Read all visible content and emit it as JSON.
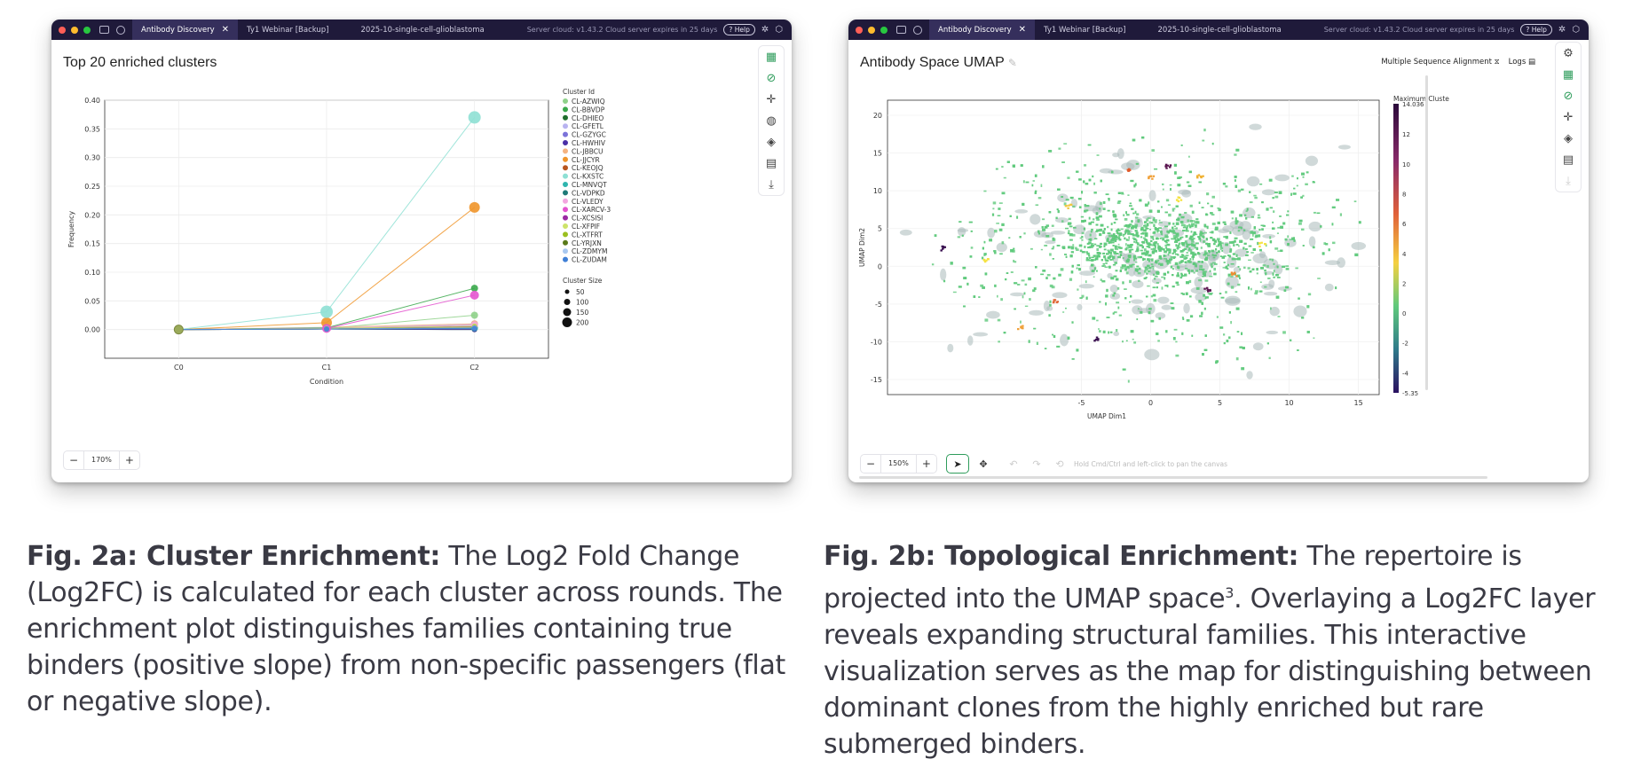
{
  "window_a": {
    "tabs": [
      {
        "label": "Antibody Discovery",
        "active": true
      },
      {
        "label": "Ty1 Webinar [Backup]"
      },
      {
        "label": "2025-10-single-cell-glioblastoma"
      }
    ],
    "server_status": "Server cloud: v1.43.2 Cloud server expires in 25 days",
    "help_label": "Help",
    "zoom": {
      "value": "170%",
      "minus": "−",
      "plus": "+"
    }
  },
  "window_b": {
    "tabs": [
      {
        "label": "Antibody Discovery",
        "active": true
      },
      {
        "label": "Ty1 Webinar [Backup]"
      },
      {
        "label": "2025-10-single-cell-glioblastoma"
      }
    ],
    "server_status": "Server cloud: v1.43.2 Cloud server expires in 25 days",
    "help_label": "Help",
    "msa_label": "Multiple Sequence Alignment",
    "logs_label": "Logs",
    "zoom": {
      "value": "150%",
      "minus": "−",
      "plus": "+"
    },
    "pan_hint": "Hold Cmd/Ctrl and left-click to pan the canvas"
  },
  "chart_data": [
    {
      "type": "line",
      "title": "Top 20 enriched clusters",
      "xlabel": "Condition",
      "ylabel": "Frequency",
      "categories": [
        "C0",
        "C1",
        "C2"
      ],
      "ylim": [
        -0.05,
        0.4
      ],
      "yticks": [
        "0.40",
        "0.35",
        "0.30",
        "0.25",
        "0.20",
        "0.15",
        "0.10",
        "0.05",
        "0.00"
      ],
      "grid": true,
      "legend_title": "Cluster Id",
      "legend_position": "right",
      "size_legend_title": "Cluster Size",
      "size_legend": [
        {
          "label": "50",
          "r": 2.5
        },
        {
          "label": "100",
          "r": 3.5
        },
        {
          "label": "150",
          "r": 4.5
        },
        {
          "label": "200",
          "r": 5.5
        }
      ],
      "series": [
        {
          "name": "CL-AZWIQ",
          "color": "#8fd18a",
          "values": [
            0,
            0.002,
            0.025
          ],
          "size": [
            4,
            4,
            4
          ]
        },
        {
          "name": "CL-BBVDP",
          "color": "#3aa84b",
          "values": [
            0,
            0.003,
            0.072
          ],
          "size": [
            4,
            4,
            4
          ]
        },
        {
          "name": "CL-DHIEO",
          "color": "#1f6e2d",
          "values": [
            0,
            0.001,
            0
          ],
          "size": [
            3,
            3,
            3
          ]
        },
        {
          "name": "CL-GFETL",
          "color": "#b8b3f0",
          "values": [
            0,
            0.002,
            0.01
          ],
          "size": [
            4,
            3,
            4
          ]
        },
        {
          "name": "CL-GZYGC",
          "color": "#7b73d9",
          "values": [
            0,
            0.001,
            0.008
          ],
          "size": [
            3,
            3,
            3
          ]
        },
        {
          "name": "CL-HWHIV",
          "color": "#4a2fa6",
          "values": [
            0,
            0.001,
            0
          ],
          "size": [
            3,
            3,
            3
          ]
        },
        {
          "name": "CL-JBBCU",
          "color": "#f5b380",
          "values": [
            0,
            0.004,
            0.01
          ],
          "size": [
            4,
            4,
            4
          ]
        },
        {
          "name": "CL-JJCYR",
          "color": "#f0952a",
          "values": [
            0,
            0.012,
            0.213
          ],
          "size": [
            6,
            6,
            6
          ]
        },
        {
          "name": "CL-KEOJQ",
          "color": "#b8561f",
          "values": [
            0,
            0.002,
            0.005
          ],
          "size": [
            3,
            3,
            3
          ]
        },
        {
          "name": "CL-KXSTC",
          "color": "#8ee0d4",
          "values": [
            0,
            0.031,
            0.37
          ],
          "size": [
            7,
            7,
            7
          ]
        },
        {
          "name": "CL-MNVQT",
          "color": "#2fb5ae",
          "values": [
            0,
            0.003,
            0.003
          ],
          "size": [
            4,
            4,
            4
          ]
        },
        {
          "name": "CL-VDPKD",
          "color": "#1f7a78",
          "values": [
            0,
            0.001,
            0.002
          ],
          "size": [
            3,
            3,
            3
          ]
        },
        {
          "name": "CL-VLEDY",
          "color": "#f3a6df",
          "values": [
            0,
            0.002,
            0.008
          ],
          "size": [
            4,
            4,
            4
          ]
        },
        {
          "name": "CL-XARCV-3",
          "color": "#e454cf",
          "values": [
            0,
            0.002,
            0.06
          ],
          "size": [
            5,
            5,
            5
          ]
        },
        {
          "name": "CL-XCSISI",
          "color": "#9b2aa3",
          "values": [
            0,
            0.001,
            0.005
          ],
          "size": [
            3,
            3,
            3
          ]
        },
        {
          "name": "CL-XFPIF",
          "color": "#cde36a",
          "values": [
            0,
            0.002,
            0.006
          ],
          "size": [
            3,
            3,
            3
          ]
        },
        {
          "name": "CL-XTFRT",
          "color": "#9bbf1f",
          "values": [
            0,
            0.001,
            0.004
          ],
          "size": [
            3,
            3,
            3
          ]
        },
        {
          "name": "CL-YRJXN",
          "color": "#5a7a1a",
          "values": [
            0,
            0.001,
            0.003
          ],
          "size": [
            3,
            3,
            3
          ]
        },
        {
          "name": "CL-ZDMYM",
          "color": "#a9c8f0",
          "values": [
            0,
            0.001,
            0.003
          ],
          "size": [
            3,
            3,
            3
          ]
        },
        {
          "name": "CL-ZUDAM",
          "color": "#3f7fd6",
          "values": [
            0,
            0.001,
            0.002
          ],
          "size": [
            3,
            3,
            3
          ]
        }
      ],
      "start_marker": {
        "condition": "C0",
        "value": 0,
        "color": "#9aaa5a"
      },
      "zoom": "170%"
    },
    {
      "type": "scatter",
      "title": "Antibody Space UMAP",
      "xlabel": "UMAP Dim1",
      "ylabel": "UMAP Dim2",
      "xlim": [
        -19,
        16.5
      ],
      "ylim": [
        -17,
        22
      ],
      "xticks": [
        -5,
        0,
        5,
        10,
        15
      ],
      "yticks": [
        20,
        15,
        10,
        5,
        0,
        -5,
        -10,
        -15
      ],
      "colorbar_title": "Maximum Cluste",
      "colorbar_range": [
        -5.35,
        14.036
      ],
      "colorbar_ticks": [
        "14.036",
        "12",
        "10",
        "8",
        "6",
        "4",
        "2",
        "0",
        "-2",
        "-4",
        "-5.35"
      ],
      "grid": true,
      "base_color": "#5fc97c",
      "gray_color": "#a9b9b9",
      "hotspots": [
        {
          "x": 0,
          "y": 12,
          "color": "#f0a038"
        },
        {
          "x": -1.5,
          "y": 13,
          "color": "#e05a2a"
        },
        {
          "x": 1.2,
          "y": 13.4,
          "color": "#5a1550"
        },
        {
          "x": 3.5,
          "y": 12,
          "color": "#f0b030"
        },
        {
          "x": 2,
          "y": 9,
          "color": "#f5e240"
        },
        {
          "x": -7,
          "y": -4.5,
          "color": "#e06a3a"
        },
        {
          "x": 4,
          "y": -3,
          "color": "#5a1550"
        },
        {
          "x": -15,
          "y": 2.5,
          "color": "#3a1050"
        },
        {
          "x": -4,
          "y": -9.5,
          "color": "#3a1050"
        },
        {
          "x": -12,
          "y": 1,
          "color": "#f5e240"
        },
        {
          "x": 8,
          "y": 3,
          "color": "#f5e240"
        },
        {
          "x": -6,
          "y": 8,
          "color": "#f0c840"
        },
        {
          "x": 6,
          "y": -1,
          "color": "#f08a30"
        },
        {
          "x": -9.5,
          "y": -8,
          "color": "#f0a038"
        }
      ],
      "zoom": "150%"
    }
  ],
  "captions": {
    "a_title": "Fig. 2a: Cluster Enrichment:",
    "a_text": " The Log2 Fold Change (Log2FC) is calculated for each cluster across rounds. The enrichment plot distinguishes families containing true binders (positive slope) from non-specific passengers (flat or negative slope).",
    "b_title": "Fig. 2b: Topological Enrichment:",
    "b_text1": " The repertoire is projected into the UMAP space",
    "b_sup": "3",
    "b_text2": ". Overlaying a Log2FC layer reveals expanding structural families. This interactive visualization serves as the map for distinguishing between dominant clones from the highly enriched but rare submerged binders."
  },
  "icons": [
    "window-layout-icon",
    "sidebar-icon",
    "close-icon",
    "help-icon",
    "bug-icon",
    "cube-icon",
    "grid-icon",
    "link-icon",
    "crosshair-icon",
    "palette-icon",
    "layers-icon",
    "clipboard-icon",
    "download-icon",
    "settings-icon",
    "hourglass-icon",
    "document-icon",
    "cursor-icon",
    "move-icon",
    "undo-icon",
    "redo-icon",
    "reset-icon",
    "pencil-icon"
  ],
  "colors": {
    "titlebar": "#1f1a3a",
    "tab_active": "#352f5c",
    "accent_green": "#2e9c5b"
  }
}
